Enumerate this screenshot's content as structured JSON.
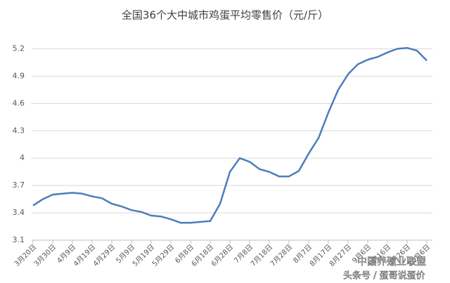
{
  "chart_data": {
    "type": "line",
    "title": "全国36个大中城市鸡蛋平均零售价（元/斤）",
    "categories": [
      "3月20日",
      null,
      "3月30日",
      null,
      "4月9日",
      null,
      "4月19日",
      null,
      "4月29日",
      null,
      "5月9日",
      null,
      "5月19日",
      null,
      "5月29日",
      null,
      "6月8日",
      null,
      "6月18日",
      null,
      "6月28日",
      null,
      "7月8日",
      null,
      "7月18日",
      null,
      "7月28日",
      null,
      "8月7日",
      null,
      "8月17日",
      null,
      "8月27日",
      null,
      "9月6日",
      null,
      "9月16日",
      null,
      "9月26日",
      null,
      "10月6日"
    ],
    "series": [
      {
        "name": "鸡蛋平均零售价",
        "color": "#4a7ebb",
        "values": [
          3.48,
          3.55,
          3.6,
          3.61,
          3.62,
          3.61,
          3.58,
          3.56,
          3.5,
          3.47,
          3.43,
          3.41,
          3.37,
          3.36,
          3.33,
          3.29,
          3.29,
          3.3,
          3.31,
          3.5,
          3.85,
          4.0,
          3.96,
          3.88,
          3.85,
          3.8,
          3.8,
          3.86,
          4.05,
          4.22,
          4.5,
          4.75,
          4.92,
          5.03,
          5.08,
          5.11,
          5.16,
          5.2,
          5.21,
          5.18,
          5.07
        ]
      }
    ],
    "ylim": [
      3.1,
      5.35
    ],
    "yticks": [
      3.1,
      3.4,
      3.7,
      {
        "value": 4.0,
        "label": "4"
      },
      4.3,
      4.6,
      4.9,
      5.2
    ],
    "grid": true,
    "watermark": [
      "中国养殖业联盟",
      "头条号 / 蛋哥说蛋价"
    ]
  }
}
